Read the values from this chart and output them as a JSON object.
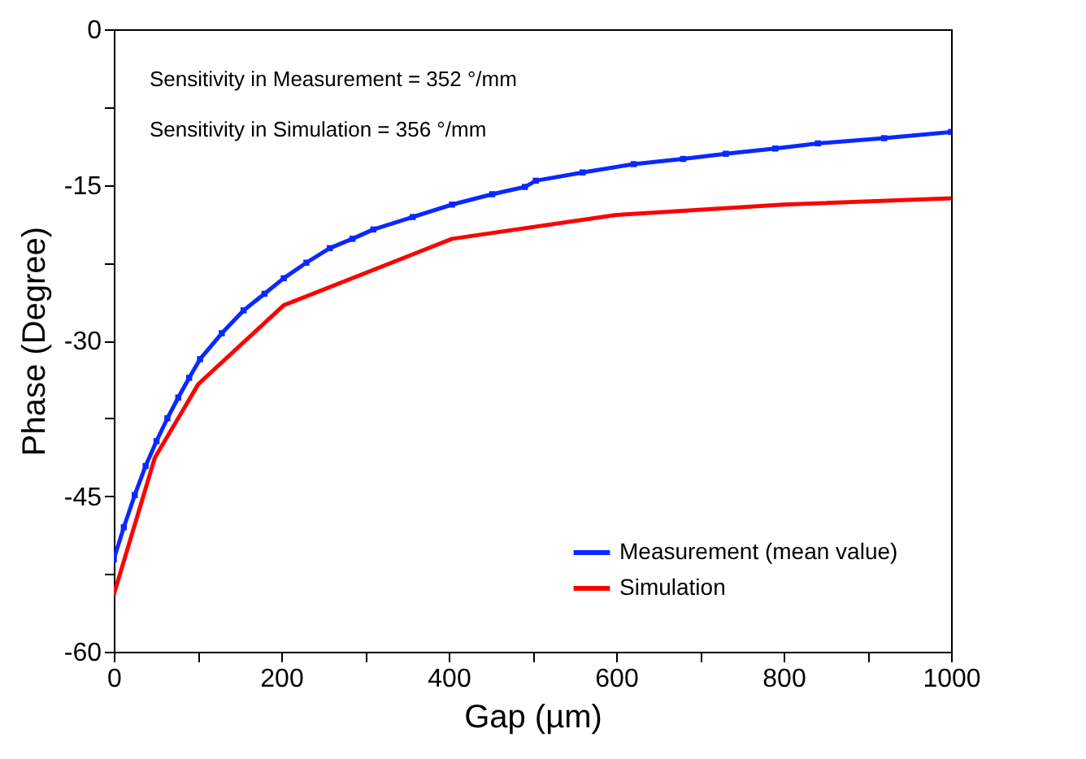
{
  "chart_data": {
    "type": "line",
    "xlabel": "Gap (µm)",
    "ylabel": "Phase (Degree)",
    "annotations": [
      "Sensitivity in Measurement = 352 °/mm",
      "Sensitivity in Simulation = 356 °/mm"
    ],
    "xlim": [
      0,
      1000
    ],
    "ylim": [
      -60,
      0
    ],
    "xticks": [
      0,
      {
        "value": 100,
        "label": null
      },
      200,
      {
        "value": 300,
        "label": null
      },
      400,
      {
        "value": 500,
        "label": null
      },
      600,
      {
        "value": 700,
        "label": null
      },
      800,
      {
        "value": 900,
        "label": null
      },
      1000
    ],
    "yticks": [
      -60,
      {
        "value": -52.5,
        "label": null
      },
      -45,
      {
        "value": -37.5,
        "label": null
      },
      -30,
      {
        "value": -22.5,
        "label": null
      },
      -15,
      {
        "value": -7.5,
        "label": null
      },
      0
    ],
    "grid": false,
    "legend": "bottom right",
    "series": [
      {
        "name": "Measurement (mean value)",
        "color": "#0a28ff",
        "marker": "square",
        "x": [
          0,
          12,
          25,
          38,
          51,
          64,
          77,
          90,
          103,
          129,
          155,
          180,
          203,
          230,
          258,
          285,
          310,
          357,
          404,
          452,
          491,
          504,
          560,
          621,
          680,
          731,
          790,
          841,
          920,
          1000
        ],
        "values": [
          -51.1,
          -48.0,
          -44.9,
          -42.1,
          -39.7,
          -37.5,
          -35.5,
          -33.6,
          -31.8,
          -29.3,
          -27.1,
          -25.5,
          -24.0,
          -22.5,
          -21.1,
          -20.2,
          -19.3,
          -18.1,
          -16.9,
          -15.9,
          -15.2,
          -14.6,
          -13.8,
          -13.0,
          -12.5,
          -12.0,
          -11.5,
          -11.0,
          -10.5,
          -9.9
        ]
      },
      {
        "name": "Simulation",
        "color": "#ff0000",
        "marker": "none",
        "x": [
          0,
          49,
          101,
          203,
          404,
          600,
          800,
          1000
        ],
        "values": [
          -54.5,
          -41.3,
          -34.2,
          -26.6,
          -20.2,
          -17.9,
          -16.9,
          -16.3
        ]
      }
    ]
  }
}
